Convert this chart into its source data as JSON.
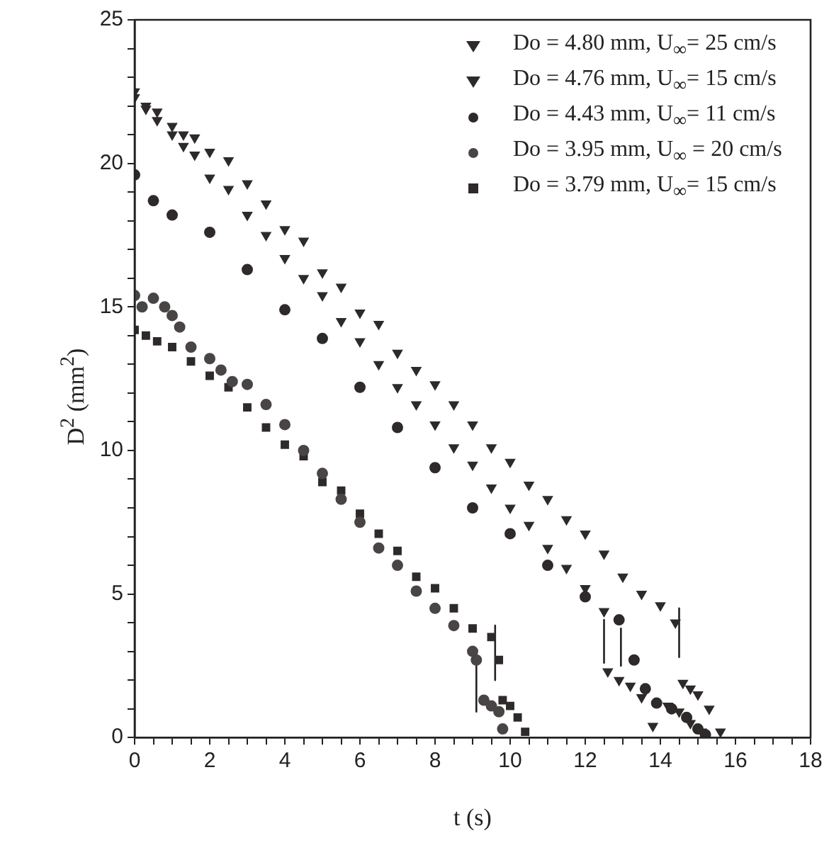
{
  "chart_data": {
    "type": "scatter",
    "xlabel": "t (s)",
    "ylabel": "D$^{2}$ (mm$^{2}$)",
    "xlim": [
      0,
      18
    ],
    "ylim": [
      0,
      25
    ],
    "xticks": [
      0,
      {
        "value": 0.5,
        "label": null
      },
      {
        "value": 1,
        "label": null
      },
      {
        "value": 1.5,
        "label": null
      },
      2,
      {
        "value": 2.5,
        "label": null
      },
      {
        "value": 3,
        "label": null
      },
      {
        "value": 3.5,
        "label": null
      },
      4,
      {
        "value": 4.5,
        "label": null
      },
      {
        "value": 5,
        "label": null
      },
      {
        "value": 5.5,
        "label": null
      },
      6,
      {
        "value": 6.5,
        "label": null
      },
      {
        "value": 7,
        "label": null
      },
      {
        "value": 7.5,
        "label": null
      },
      8,
      {
        "value": 8.5,
        "label": null
      },
      {
        "value": 9,
        "label": null
      },
      {
        "value": 9.5,
        "label": null
      },
      10,
      {
        "value": 10.5,
        "label": null
      },
      {
        "value": 11,
        "label": null
      },
      {
        "value": 11.5,
        "label": null
      },
      12,
      {
        "value": 12.5,
        "label": null
      },
      {
        "value": 13,
        "label": null
      },
      {
        "value": 13.5,
        "label": null
      },
      14,
      {
        "value": 14.5,
        "label": null
      },
      {
        "value": 15,
        "label": null
      },
      {
        "value": 15.5,
        "label": null
      },
      16,
      {
        "value": 16.5,
        "label": null
      },
      {
        "value": 17,
        "label": null
      },
      {
        "value": 17.5,
        "label": null
      },
      18
    ],
    "yticks": [
      0,
      {
        "value": 1,
        "label": null
      },
      {
        "value": 2,
        "label": null
      },
      {
        "value": 3,
        "label": null
      },
      {
        "value": 4,
        "label": null
      },
      5,
      {
        "value": 6,
        "label": null
      },
      {
        "value": 7,
        "label": null
      },
      {
        "value": 8,
        "label": null
      },
      {
        "value": 9,
        "label": null
      },
      10,
      {
        "value": 11,
        "label": null
      },
      {
        "value": 12,
        "label": null
      },
      {
        "value": 13,
        "label": null
      },
      {
        "value": 14,
        "label": null
      },
      15,
      {
        "value": 16,
        "label": null
      },
      {
        "value": 17,
        "label": null
      },
      {
        "value": 18,
        "label": null
      },
      {
        "value": 19,
        "label": null
      },
      20,
      {
        "value": 21,
        "label": null
      },
      {
        "value": 22,
        "label": null
      },
      {
        "value": 23,
        "label": null
      },
      {
        "value": 24,
        "label": null
      },
      25
    ],
    "grid": false,
    "legend": "top right",
    "series": [
      {
        "name": "Do = 4.80 mm, U$_{∞}$= 25 cm/s",
        "color": "#2e2a2a",
        "marker": "triangle",
        "x": [
          0,
          0.3,
          0.6,
          1.0,
          1.3,
          1.6,
          2.0,
          2.5,
          3.0,
          3.5,
          4.0,
          4.5,
          5.0,
          5.5,
          6.0,
          6.5,
          7.0,
          7.5,
          8.0,
          8.5,
          9.0,
          9.5,
          10.0,
          10.5,
          11.0,
          11.5,
          12.0,
          12.5,
          13.0,
          13.5,
          14.0,
          14.4,
          14.6,
          14.8,
          15.0,
          15.3,
          15.6
        ],
        "values": [
          22.5,
          22.0,
          21.8,
          21.3,
          21.0,
          20.9,
          20.4,
          20.1,
          19.3,
          18.6,
          17.7,
          17.3,
          16.2,
          15.7,
          14.8,
          14.4,
          13.4,
          12.8,
          12.3,
          11.6,
          10.9,
          10.1,
          9.6,
          8.8,
          8.3,
          7.6,
          7.1,
          6.4,
          5.6,
          5.0,
          4.6,
          4.0,
          1.9,
          1.7,
          1.5,
          1.0,
          0.2
        ]
      },
      {
        "name": "Do = 4.76 mm, U$_{∞}$= 15 cm/s",
        "color": "#2e2a2a",
        "marker": "triangle",
        "x": [
          0,
          0.3,
          0.6,
          1.0,
          1.3,
          1.6,
          2.0,
          2.5,
          3.0,
          3.5,
          4.0,
          4.5,
          5.0,
          5.5,
          6.0,
          6.5,
          7.0,
          7.5,
          8.0,
          8.5,
          9.0,
          9.5,
          10.0,
          10.5,
          11.0,
          11.5,
          12.0,
          12.5,
          12.6,
          12.9,
          13.2,
          13.5,
          13.8,
          14.2,
          14.5,
          14.8,
          15.1
        ],
        "values": [
          22.3,
          21.9,
          21.5,
          21.0,
          20.6,
          20.3,
          19.5,
          19.1,
          18.2,
          17.5,
          16.7,
          16.0,
          15.4,
          14.5,
          13.8,
          13.0,
          12.2,
          11.6,
          10.9,
          10.1,
          9.5,
          8.7,
          8.0,
          7.4,
          6.6,
          5.9,
          5.2,
          4.4,
          2.3,
          2.0,
          1.8,
          1.4,
          0.4,
          1.1,
          0.9,
          0.5,
          0.2
        ]
      },
      {
        "name": "Do = 4.43 mm, U$_{∞}$= 11 cm/s",
        "color": "#2e2a2a",
        "marker": "circle",
        "x": [
          0,
          0.5,
          1.0,
          2.0,
          3.0,
          4.0,
          5.0,
          6.0,
          7.0,
          8.0,
          9.0,
          10.0,
          11.0,
          12.0,
          12.9,
          13.3,
          13.6,
          13.9,
          14.3,
          14.7,
          15.0,
          15.2
        ],
        "values": [
          19.6,
          18.7,
          18.2,
          17.6,
          16.3,
          14.9,
          13.9,
          12.2,
          10.8,
          9.4,
          8.0,
          7.1,
          6.0,
          4.9,
          4.1,
          2.7,
          1.7,
          1.2,
          1.0,
          0.7,
          0.3,
          0.1
        ]
      },
      {
        "name": "Do = 3.95 mm, U$_{∞}$ = 20 cm/s",
        "color": "#4a4545",
        "marker": "circle",
        "x": [
          0,
          0.2,
          0.5,
          0.8,
          1.0,
          1.2,
          1.5,
          2.0,
          2.3,
          2.6,
          3.0,
          3.5,
          4.0,
          4.5,
          5.0,
          5.5,
          6.0,
          6.5,
          7.0,
          7.5,
          8.0,
          8.5,
          9.0,
          9.1,
          9.3,
          9.5,
          9.7,
          9.8
        ],
        "values": [
          15.4,
          15.0,
          15.3,
          15.0,
          14.7,
          14.3,
          13.6,
          13.2,
          12.8,
          12.4,
          12.3,
          11.6,
          10.9,
          10.0,
          9.2,
          8.3,
          7.5,
          6.6,
          6.0,
          5.1,
          4.5,
          3.9,
          3.0,
          2.7,
          1.3,
          1.1,
          0.9,
          0.3
        ]
      },
      {
        "name": "Do = 3.79 mm, U$_{∞}$= 15 cm/s",
        "color": "#2e2a2a",
        "marker": "square",
        "x": [
          0,
          0.3,
          0.6,
          1.0,
          1.5,
          2.0,
          2.5,
          3.0,
          3.5,
          4.0,
          4.5,
          5.0,
          5.5,
          6.0,
          6.5,
          7.0,
          7.5,
          8.0,
          8.5,
          9.0,
          9.5,
          9.7,
          9.8,
          10.0,
          10.2,
          10.4
        ],
        "values": [
          14.2,
          14.0,
          13.8,
          13.6,
          13.1,
          12.6,
          12.2,
          11.5,
          10.8,
          10.2,
          9.8,
          8.9,
          8.6,
          7.8,
          7.1,
          6.5,
          5.6,
          5.2,
          4.5,
          3.8,
          3.5,
          2.7,
          1.3,
          1.1,
          0.7,
          0.2
        ]
      },
      {
        "type": "line",
        "color": "#222222",
        "marker": "none",
        "x": [
          9.1,
          9.1
        ],
        "values": [
          2.9,
          0.9
        ]
      },
      {
        "type": "line",
        "color": "#222222",
        "marker": "none",
        "x": [
          9.6,
          9.6
        ],
        "values": [
          3.9,
          2.0
        ]
      },
      {
        "type": "line",
        "color": "#222222",
        "marker": "none",
        "x": [
          12.5,
          12.5
        ],
        "values": [
          4.1,
          2.6
        ]
      },
      {
        "type": "line",
        "color": "#222222",
        "marker": "none",
        "x": [
          12.95,
          12.95
        ],
        "values": [
          3.8,
          2.5
        ]
      },
      {
        "type": "line",
        "color": "#222222",
        "marker": "none",
        "x": [
          14.5,
          14.5
        ],
        "values": [
          4.5,
          2.8
        ]
      }
    ]
  }
}
